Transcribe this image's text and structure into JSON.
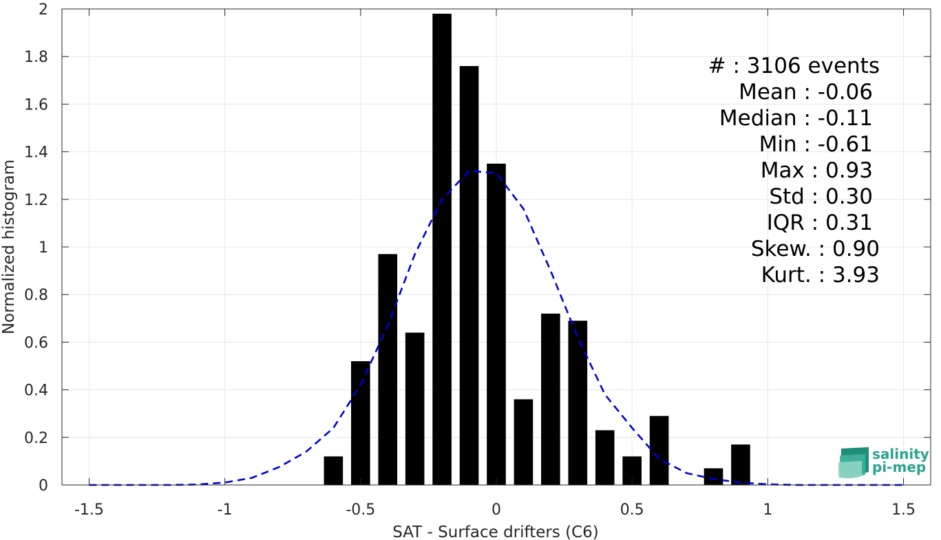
{
  "chart_data": {
    "type": "bar",
    "xlabel": "SAT - Surface drifters (C6)",
    "ylabel": "Normalized histogram",
    "xlim": [
      -1.6,
      1.6
    ],
    "ylim": [
      0,
      2
    ],
    "xticks": [
      -1.5,
      -1,
      -0.5,
      0,
      0.5,
      1,
      1.5
    ],
    "xtick_labels": [
      "-1.5",
      "-1",
      "-0.5",
      "0",
      "0.5",
      "1",
      "1.5"
    ],
    "yticks": [
      0,
      0.2,
      0.4,
      0.6,
      0.8,
      1,
      1.2,
      1.4,
      1.6,
      1.8,
      2
    ],
    "ytick_labels": [
      "0",
      "0.2",
      "0.4",
      "0.6",
      "0.8",
      "1",
      "1.2",
      "1.4",
      "1.6",
      "1.8",
      "2"
    ],
    "grid": true,
    "bar_width": 0.07,
    "bar_color": "#000000",
    "bars": {
      "x": [
        -0.6,
        -0.5,
        -0.4,
        -0.3,
        -0.2,
        -0.1,
        0.0,
        0.1,
        0.2,
        0.3,
        0.4,
        0.5,
        0.6,
        0.8,
        0.9
      ],
      "values": [
        0.12,
        0.52,
        0.97,
        0.64,
        1.98,
        1.76,
        1.35,
        0.36,
        0.72,
        0.69,
        0.23,
        0.12,
        0.29,
        0.07,
        0.17
      ]
    },
    "fit_curve": {
      "style": "dashed",
      "color": "#0000dd",
      "x": [
        -1.5,
        -1.4,
        -1.3,
        -1.2,
        -1.1,
        -1.0,
        -0.9,
        -0.8,
        -0.7,
        -0.6,
        -0.5,
        -0.4,
        -0.3,
        -0.2,
        -0.1,
        0.0,
        0.1,
        0.2,
        0.3,
        0.4,
        0.5,
        0.6,
        0.7,
        0.8,
        0.9,
        1.0,
        1.1,
        1.2,
        1.3,
        1.4,
        1.5
      ],
      "y": [
        0.0,
        0.0,
        0.0,
        0.0,
        0.002,
        0.01,
        0.03,
        0.075,
        0.14,
        0.24,
        0.42,
        0.67,
        0.97,
        1.2,
        1.32,
        1.31,
        1.16,
        0.9,
        0.62,
        0.38,
        0.24,
        0.11,
        0.05,
        0.025,
        0.01,
        0.003,
        0.0,
        0.0,
        0.0,
        0.0,
        0.0
      ]
    },
    "stats": [
      "#  : 3106 events",
      "Mean : -0.06",
      "Median : -0.11",
      "Min : -0.61",
      "Max : 0.93",
      "Std : 0.30",
      "IQR : 0.31",
      "Skew. : 0.90",
      "Kurt. : 3.93"
    ],
    "logo": [
      "salinity",
      "pi-mep"
    ],
    "colors": {
      "grid": "#e6e6e6",
      "axis": "#262626",
      "logo": "#2aa38e"
    }
  }
}
